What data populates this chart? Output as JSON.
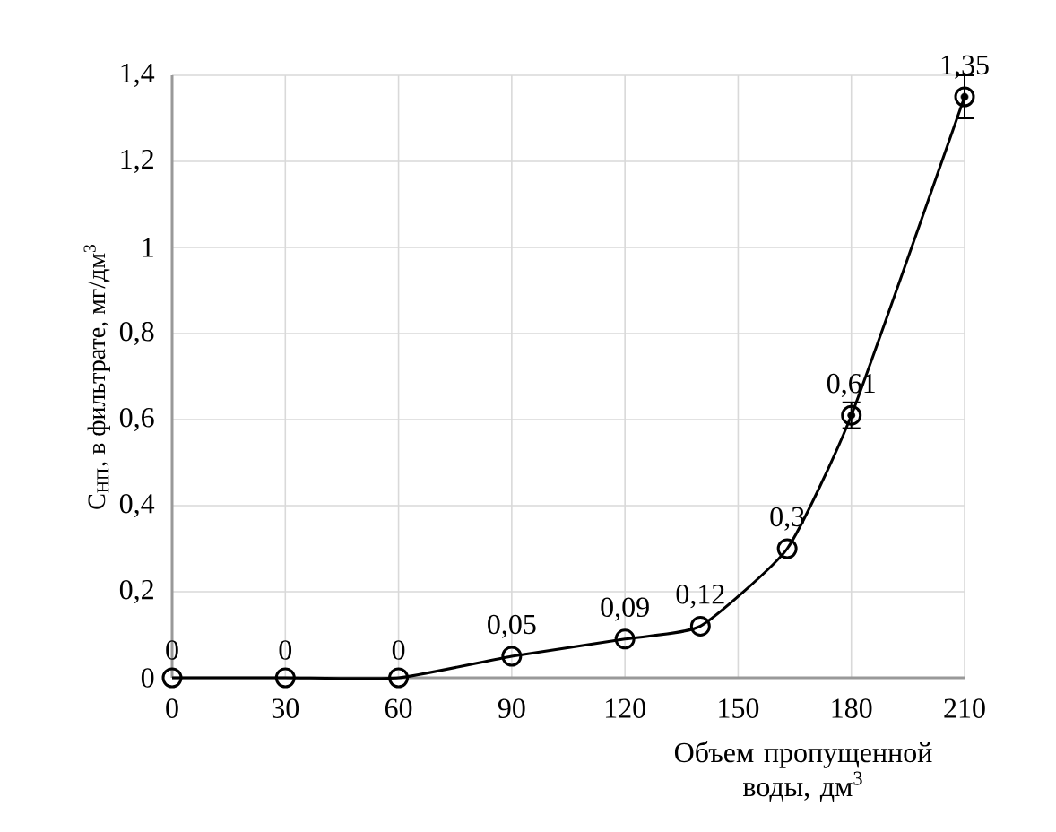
{
  "chart_data": {
    "type": "line",
    "xlabel": "Объем пропущенной воды, дм$^{3}$",
    "ylabel": "C$_{НП}$, в фильтрате, мг/дм$^{3}$",
    "x": [
      0,
      30,
      60,
      90,
      120,
      140,
      163,
      180,
      210
    ],
    "values": [
      0,
      0,
      0,
      0.05,
      0.09,
      0.12,
      0.3,
      0.61,
      1.35
    ],
    "value_labels": [
      "0",
      "0",
      "0",
      "0,05",
      "0,09",
      "0,12",
      "0,3",
      "0,61",
      "1,35"
    ],
    "errors": [
      null,
      null,
      null,
      null,
      null,
      null,
      null,
      0.03,
      0.05
    ],
    "color": "#000000",
    "marker": "circle",
    "line_style": "solid",
    "grid": true,
    "xlim": [
      0,
      210
    ],
    "xticks": [
      0,
      30,
      60,
      90,
      120,
      150,
      180,
      210
    ],
    "ylim": [
      0,
      1.4
    ],
    "yticks": [
      0,
      {
        "value": 0.2,
        "label": "0,2"
      },
      {
        "value": 0.4,
        "label": "0,4"
      },
      {
        "value": 0.6,
        "label": "0,6"
      },
      {
        "value": 0.8,
        "label": "0,8"
      },
      1,
      {
        "value": 1.2,
        "label": "1,2"
      },
      {
        "value": 1.4,
        "label": "1,4"
      }
    ]
  }
}
